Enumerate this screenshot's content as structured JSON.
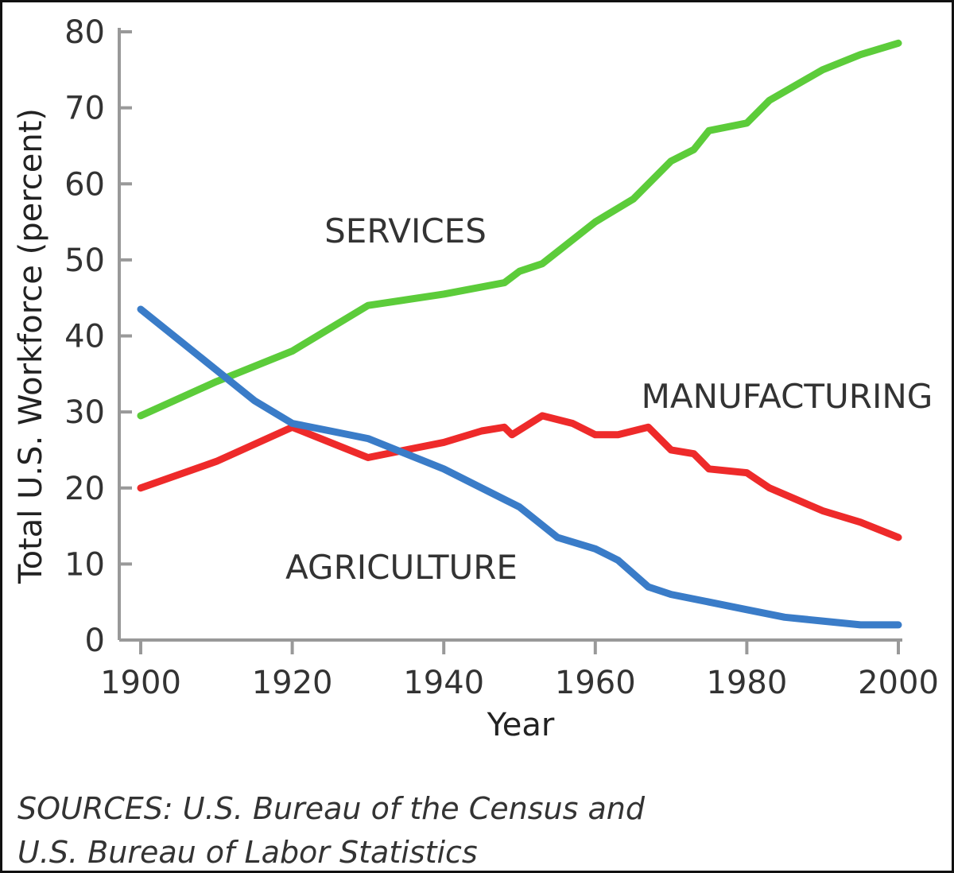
{
  "chart_data": {
    "type": "line",
    "xlabel": "Year",
    "ylabel": "Total U.S. Workforce (percent)",
    "xlim": [
      1900,
      2000
    ],
    "ylim": [
      0,
      80
    ],
    "xticks": [
      "1900",
      "1920",
      "1940",
      "1960",
      "1980",
      "2000"
    ],
    "yticks": [
      "0",
      "10",
      "20",
      "30",
      "40",
      "50",
      "60",
      "70",
      "80"
    ],
    "grid": false,
    "legend": "inline labels",
    "series": [
      {
        "name": "SERVICES",
        "color": "#5ccc3a",
        "x": [
          1900,
          1910,
          1920,
          1930,
          1940,
          1948,
          1950,
          1953,
          1960,
          1965,
          1970,
          1973,
          1975,
          1980,
          1983,
          1990,
          1995,
          2000
        ],
        "y": [
          29.5,
          34,
          38,
          44,
          45.5,
          47,
          48.5,
          49.5,
          55,
          58,
          63,
          64.5,
          67,
          68,
          71,
          75,
          77,
          78.5
        ]
      },
      {
        "name": "MANUFACTURING",
        "color": "#ee2a2a",
        "x": [
          1900,
          1910,
          1920,
          1925,
          1930,
          1935,
          1940,
          1945,
          1948,
          1949,
          1953,
          1957,
          1960,
          1963,
          1967,
          1970,
          1973,
          1975,
          1980,
          1983,
          1990,
          1995,
          2000
        ],
        "y": [
          20,
          23.5,
          28,
          26,
          24,
          25,
          26,
          27.5,
          28,
          27,
          29.5,
          28.5,
          27,
          27,
          28,
          25,
          24.5,
          22.5,
          22,
          20,
          17,
          15.5,
          13.5
        ]
      },
      {
        "name": "AGRICULTURE",
        "color": "#3a7cc8",
        "x": [
          1900,
          1905,
          1910,
          1915,
          1920,
          1925,
          1930,
          1935,
          1940,
          1945,
          1950,
          1955,
          1960,
          1963,
          1967,
          1970,
          1975,
          1980,
          1985,
          1990,
          1995,
          2000
        ],
        "y": [
          43.5,
          39.5,
          35.5,
          31.5,
          28.5,
          27.5,
          26.5,
          24.5,
          22.5,
          20,
          17.5,
          13.5,
          12,
          10.5,
          7,
          6,
          5,
          4,
          3,
          2.5,
          2,
          2
        ]
      }
    ]
  },
  "sources": {
    "line1": "SOURCES: U.S. Bureau of the Census and",
    "line2": "U.S. Bureau of Labor Statistics"
  }
}
